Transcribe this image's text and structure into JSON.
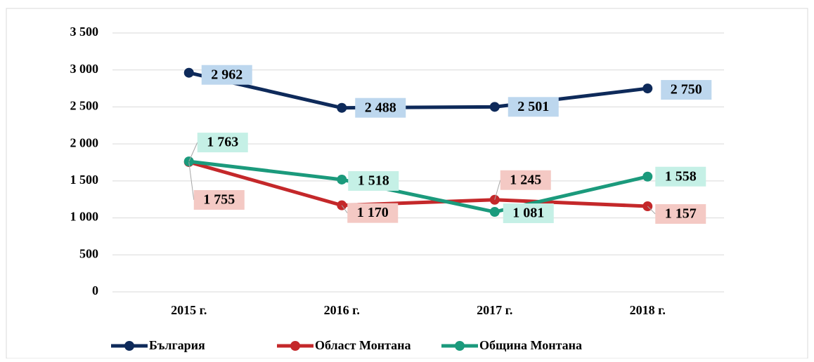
{
  "chart_data": {
    "type": "line",
    "categories": [
      "2015 г.",
      "2016 г.",
      "2017 г.",
      "2018 г."
    ],
    "series": [
      {
        "name": "България",
        "color": "#0e2a5a",
        "label_bg": "#bdd7ee",
        "values": [
          2962,
          2488,
          2501,
          2750
        ],
        "value_labels": [
          "2 962",
          "2 488",
          "2 501",
          "2 750"
        ]
      },
      {
        "name": "Област Монтана",
        "color": "#c4282a",
        "label_bg": "#f4c9c4",
        "values": [
          1755,
          1170,
          1245,
          1157
        ],
        "value_labels": [
          "1 755",
          "1 170",
          "1 245",
          "1 157"
        ]
      },
      {
        "name": "Община Монтана",
        "color": "#1b9a7c",
        "label_bg": "#c5f0e6",
        "values": [
          1763,
          1518,
          1081,
          1558
        ],
        "value_labels": [
          "1 763",
          "1 518",
          "1 081",
          "1 558"
        ]
      }
    ],
    "ylim": [
      0,
      3500
    ],
    "yticks": [
      0,
      500,
      {
        "value": 1000,
        "label": "1 000"
      },
      {
        "value": 1500,
        "label": "1 500"
      },
      {
        "value": 2000,
        "label": "2 000"
      },
      {
        "value": 2500,
        "label": "2 500"
      },
      {
        "value": 3000,
        "label": "3 000"
      },
      {
        "value": 3500,
        "label": "3 500"
      }
    ],
    "grid": true,
    "legend": "bottom"
  }
}
